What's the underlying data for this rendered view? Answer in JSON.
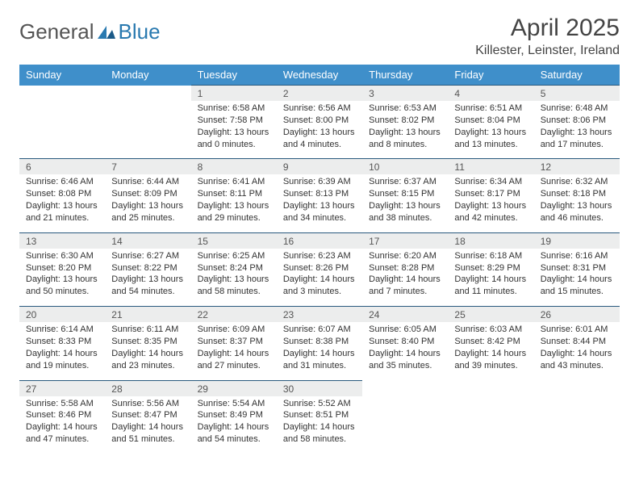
{
  "brand": {
    "name_a": "General",
    "name_b": "Blue"
  },
  "title": {
    "month": "April 2025",
    "location": "Killester, Leinster, Ireland"
  },
  "colors": {
    "header_bg": "#3f8fca",
    "header_text": "#ffffff",
    "daynum_bg": "#eceded",
    "border_top": "#2a5a7e",
    "logo_blue": "#2a7ab0",
    "text": "#333333"
  },
  "weekdays": [
    "Sunday",
    "Monday",
    "Tuesday",
    "Wednesday",
    "Thursday",
    "Friday",
    "Saturday"
  ],
  "weeks": [
    [
      null,
      null,
      {
        "n": "1",
        "sr": "6:58 AM",
        "ss": "7:58 PM",
        "dl": "13 hours and 0 minutes."
      },
      {
        "n": "2",
        "sr": "6:56 AM",
        "ss": "8:00 PM",
        "dl": "13 hours and 4 minutes."
      },
      {
        "n": "3",
        "sr": "6:53 AM",
        "ss": "8:02 PM",
        "dl": "13 hours and 8 minutes."
      },
      {
        "n": "4",
        "sr": "6:51 AM",
        "ss": "8:04 PM",
        "dl": "13 hours and 13 minutes."
      },
      {
        "n": "5",
        "sr": "6:48 AM",
        "ss": "8:06 PM",
        "dl": "13 hours and 17 minutes."
      }
    ],
    [
      {
        "n": "6",
        "sr": "6:46 AM",
        "ss": "8:08 PM",
        "dl": "13 hours and 21 minutes."
      },
      {
        "n": "7",
        "sr": "6:44 AM",
        "ss": "8:09 PM",
        "dl": "13 hours and 25 minutes."
      },
      {
        "n": "8",
        "sr": "6:41 AM",
        "ss": "8:11 PM",
        "dl": "13 hours and 29 minutes."
      },
      {
        "n": "9",
        "sr": "6:39 AM",
        "ss": "8:13 PM",
        "dl": "13 hours and 34 minutes."
      },
      {
        "n": "10",
        "sr": "6:37 AM",
        "ss": "8:15 PM",
        "dl": "13 hours and 38 minutes."
      },
      {
        "n": "11",
        "sr": "6:34 AM",
        "ss": "8:17 PM",
        "dl": "13 hours and 42 minutes."
      },
      {
        "n": "12",
        "sr": "6:32 AM",
        "ss": "8:18 PM",
        "dl": "13 hours and 46 minutes."
      }
    ],
    [
      {
        "n": "13",
        "sr": "6:30 AM",
        "ss": "8:20 PM",
        "dl": "13 hours and 50 minutes."
      },
      {
        "n": "14",
        "sr": "6:27 AM",
        "ss": "8:22 PM",
        "dl": "13 hours and 54 minutes."
      },
      {
        "n": "15",
        "sr": "6:25 AM",
        "ss": "8:24 PM",
        "dl": "13 hours and 58 minutes."
      },
      {
        "n": "16",
        "sr": "6:23 AM",
        "ss": "8:26 PM",
        "dl": "14 hours and 3 minutes."
      },
      {
        "n": "17",
        "sr": "6:20 AM",
        "ss": "8:28 PM",
        "dl": "14 hours and 7 minutes."
      },
      {
        "n": "18",
        "sr": "6:18 AM",
        "ss": "8:29 PM",
        "dl": "14 hours and 11 minutes."
      },
      {
        "n": "19",
        "sr": "6:16 AM",
        "ss": "8:31 PM",
        "dl": "14 hours and 15 minutes."
      }
    ],
    [
      {
        "n": "20",
        "sr": "6:14 AM",
        "ss": "8:33 PM",
        "dl": "14 hours and 19 minutes."
      },
      {
        "n": "21",
        "sr": "6:11 AM",
        "ss": "8:35 PM",
        "dl": "14 hours and 23 minutes."
      },
      {
        "n": "22",
        "sr": "6:09 AM",
        "ss": "8:37 PM",
        "dl": "14 hours and 27 minutes."
      },
      {
        "n": "23",
        "sr": "6:07 AM",
        "ss": "8:38 PM",
        "dl": "14 hours and 31 minutes."
      },
      {
        "n": "24",
        "sr": "6:05 AM",
        "ss": "8:40 PM",
        "dl": "14 hours and 35 minutes."
      },
      {
        "n": "25",
        "sr": "6:03 AM",
        "ss": "8:42 PM",
        "dl": "14 hours and 39 minutes."
      },
      {
        "n": "26",
        "sr": "6:01 AM",
        "ss": "8:44 PM",
        "dl": "14 hours and 43 minutes."
      }
    ],
    [
      {
        "n": "27",
        "sr": "5:58 AM",
        "ss": "8:46 PM",
        "dl": "14 hours and 47 minutes."
      },
      {
        "n": "28",
        "sr": "5:56 AM",
        "ss": "8:47 PM",
        "dl": "14 hours and 51 minutes."
      },
      {
        "n": "29",
        "sr": "5:54 AM",
        "ss": "8:49 PM",
        "dl": "14 hours and 54 minutes."
      },
      {
        "n": "30",
        "sr": "5:52 AM",
        "ss": "8:51 PM",
        "dl": "14 hours and 58 minutes."
      },
      null,
      null,
      null
    ]
  ],
  "labels": {
    "sunrise": "Sunrise: ",
    "sunset": "Sunset: ",
    "daylight": "Daylight: "
  }
}
